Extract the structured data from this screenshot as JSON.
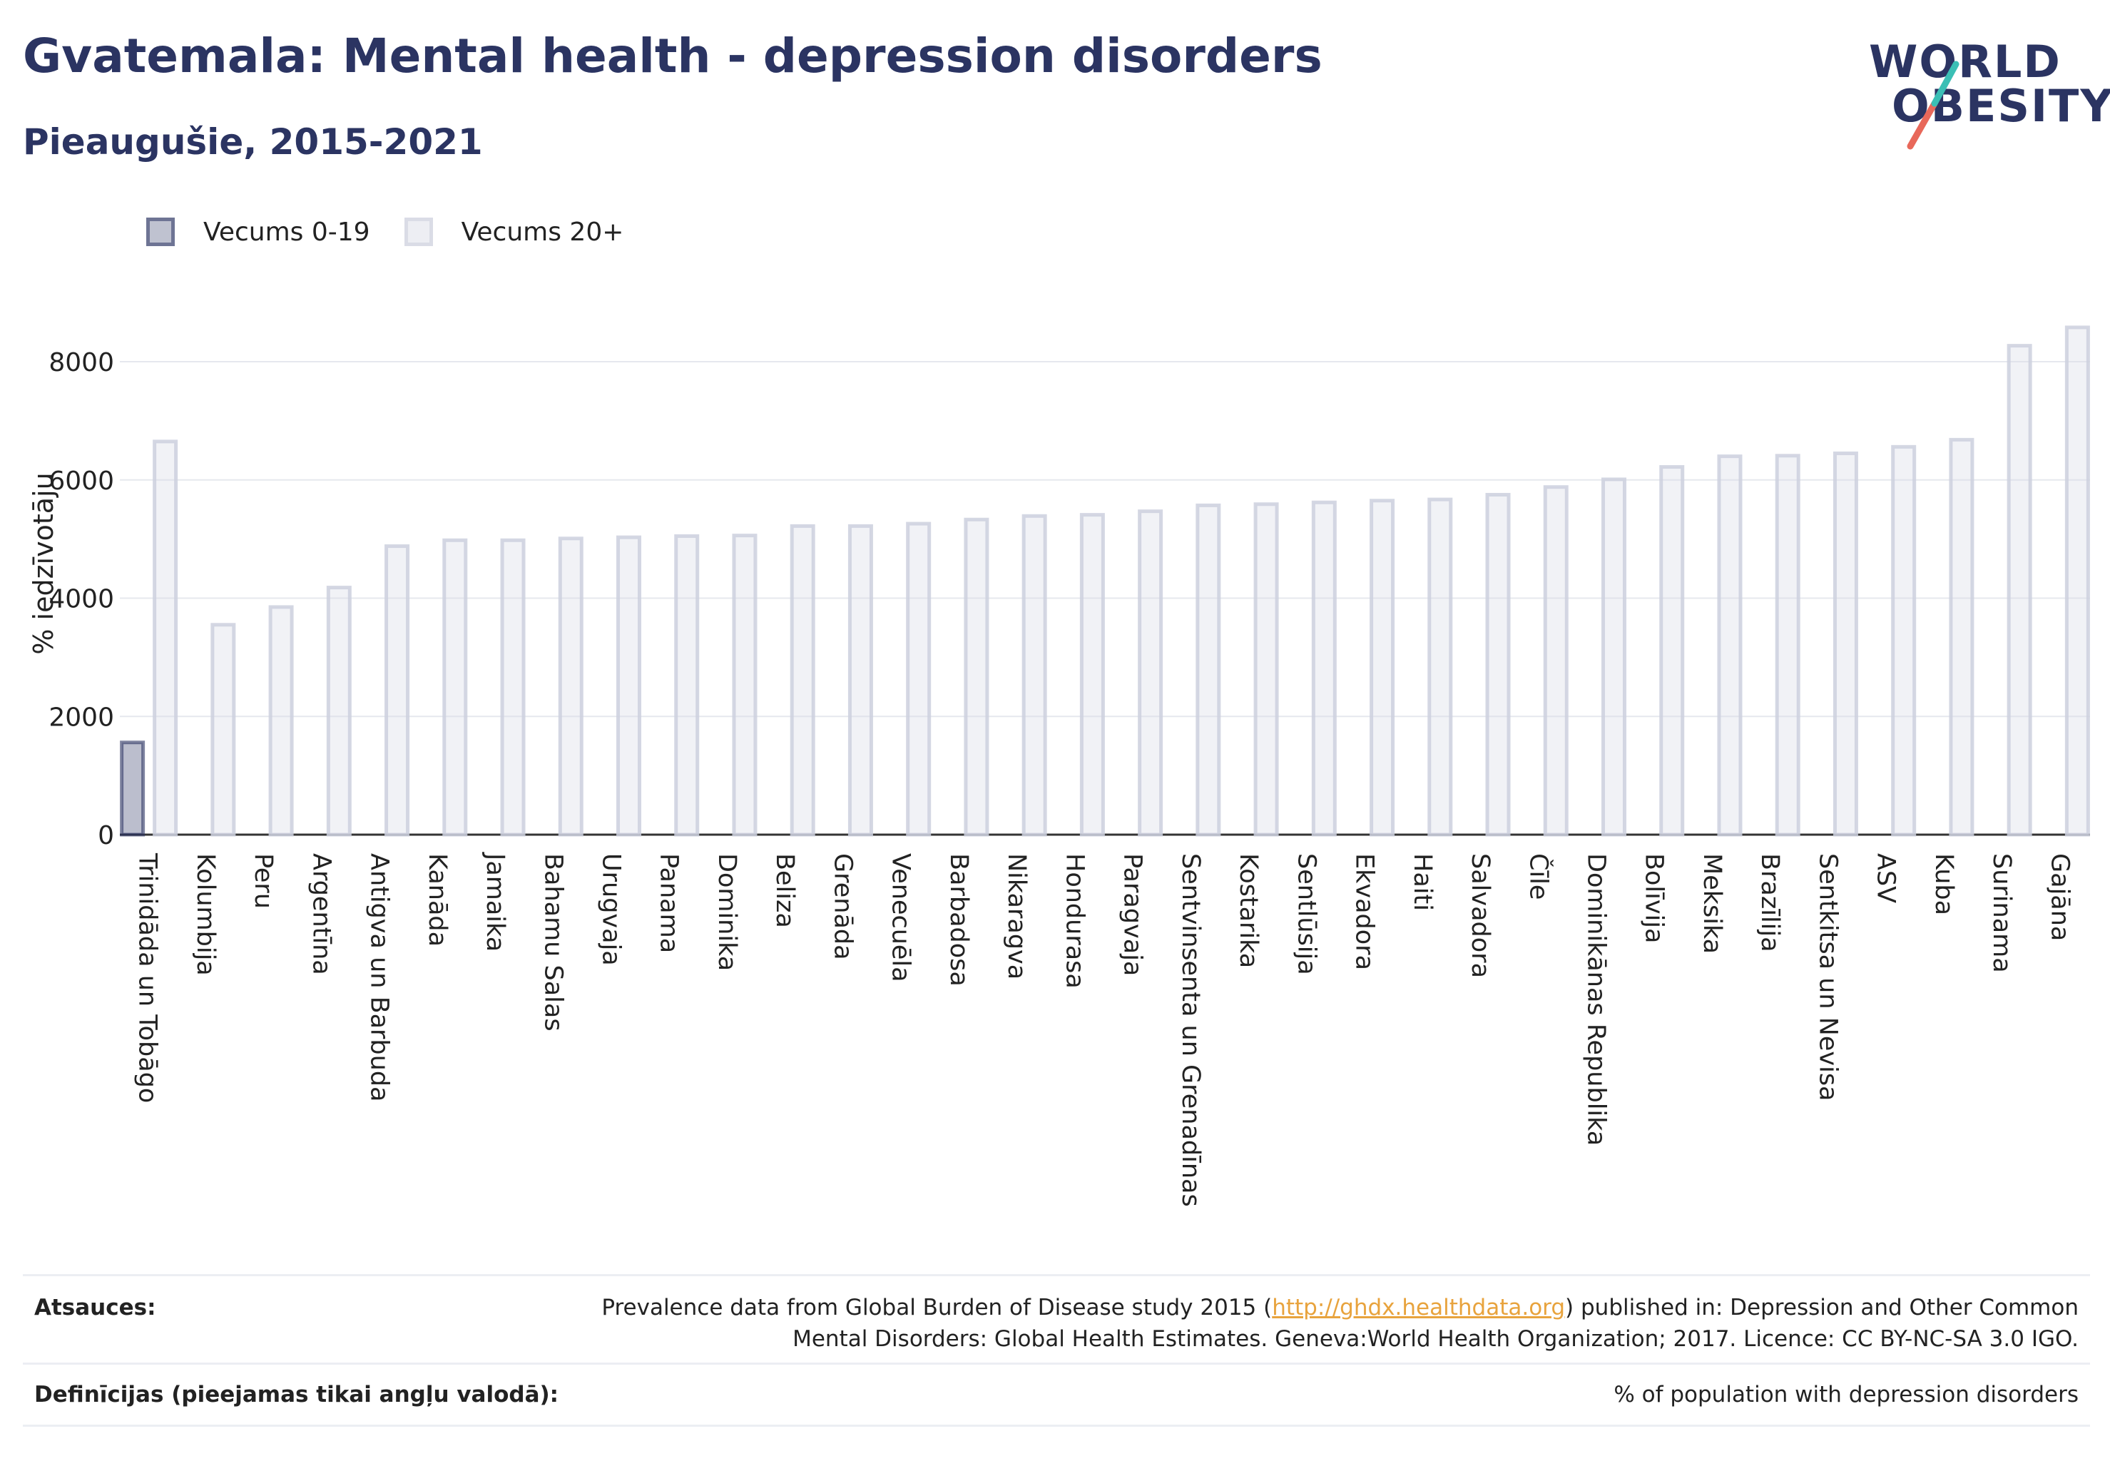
{
  "header": {
    "title": "Gvatemala: Mental health - depression disorders",
    "subtitle": "Pieaugušie, 2015-2021"
  },
  "logo": {
    "line1": "WORLD",
    "line2": "OBESITY",
    "slash_colors": [
      "#3bbfb5",
      "#e8685a"
    ]
  },
  "legend": [
    {
      "label": "Vecums 0-19",
      "color": "#2b3462"
    },
    {
      "label": "Vecums 20+",
      "color": "#d7d9e4"
    }
  ],
  "chart_data": {
    "type": "bar",
    "ylabel": "% iedzīvotāju",
    "ylim": [
      0,
      9000
    ],
    "yticks": [
      0,
      2000,
      4000,
      6000,
      8000
    ],
    "grid": true,
    "legend_position": "top-left",
    "categories": [
      "Trinidāda un Tobāgo",
      "Kolumbija",
      "Peru",
      "Argentīna",
      "Antigva un Barbuda",
      "Kanāda",
      "Jamaika",
      "Bahamu Salas",
      "Urugvaja",
      "Panama",
      "Dominika",
      "Beliza",
      "Grenāda",
      "Venecuēla",
      "Barbadosa",
      "Nikaragva",
      "Hondurasa",
      "Paragvaja",
      "Sentvinsenta un Grenadīnas",
      "Kostarika",
      "Sentlūsija",
      "Ekvadora",
      "Haiti",
      "Salvadora",
      "Čīle",
      "Dominikānas Republika",
      "Bolīvija",
      "Meksika",
      "Brazīlija",
      "Sentkitsa un Nevisa",
      "ASV",
      "Kuba",
      "Surinama",
      "Gajāna"
    ],
    "series": [
      {
        "name": "Vecums 0-19",
        "color": "#2b3462",
        "values": [
          1560,
          0,
          0,
          0,
          0,
          0,
          0,
          0,
          0,
          0,
          0,
          0,
          0,
          0,
          0,
          0,
          0,
          0,
          0,
          0,
          0,
          0,
          0,
          0,
          0,
          0,
          0,
          0,
          0,
          0,
          0,
          0,
          0,
          0
        ]
      },
      {
        "name": "Vecums 20+",
        "color": "#d7d9e4",
        "values": [
          6650,
          3550,
          3850,
          4180,
          4880,
          4980,
          4980,
          5010,
          5030,
          5050,
          5060,
          5220,
          5220,
          5260,
          5330,
          5390,
          5410,
          5470,
          5570,
          5590,
          5620,
          5650,
          5670,
          5750,
          5880,
          6010,
          6220,
          6400,
          6410,
          6450,
          6560,
          6680,
          8270,
          8580
        ]
      }
    ]
  },
  "footer": {
    "sources_label": "Atsauces:",
    "sources_pre": "Prevalence data from Global Burden of Disease study 2015 (",
    "sources_link": "http://ghdx.healthdata.org",
    "sources_post": ") published in: Depression and Other Common",
    "sources_line2": "Mental Disorders: Global Health Estimates. Geneva:World Health Organization; 2017. Licence: CC BY-NC-SA 3.0 IGO.",
    "definitions_label": "Definīcijas (pieejamas tikai angļu valodā):",
    "definitions_value": "% of population with depression disorders"
  }
}
